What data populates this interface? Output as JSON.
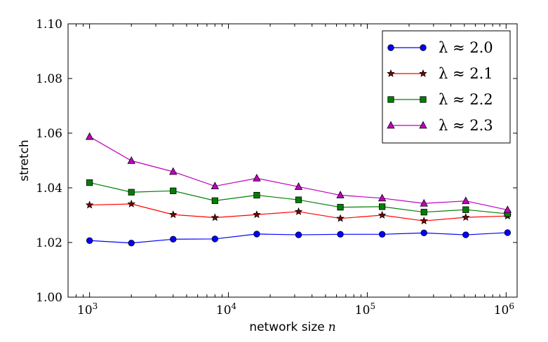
{
  "chart_data": {
    "type": "line",
    "title": "",
    "xlabel": "network size",
    "xlabel_var": "n",
    "ylabel": "stretch",
    "xscale": "log",
    "xlim": [
      700,
      1200000
    ],
    "ylim": [
      1.0,
      1.1
    ],
    "yticks": [
      "1.00",
      "1.02",
      "1.04",
      "1.06",
      "1.08",
      "1.10"
    ],
    "ytick_values": [
      1.0,
      1.02,
      1.04,
      1.06,
      1.08,
      1.1
    ],
    "xticks": [
      {
        "value": 1000,
        "base": "10",
        "exp": "3"
      },
      {
        "value": 10000,
        "base": "10",
        "exp": "4"
      },
      {
        "value": 100000,
        "base": "10",
        "exp": "5"
      },
      {
        "value": 1000000,
        "base": "10",
        "exp": "6"
      }
    ],
    "x": [
      1000,
      2000,
      4000,
      8000,
      16000,
      32000,
      64000,
      128000,
      256000,
      512000,
      1024000
    ],
    "legend_position": "top-right",
    "series": [
      {
        "name": "λ ≈ 2.0",
        "color": "#0000ff",
        "marker": "circle",
        "values": [
          1.0207,
          1.0198,
          1.0212,
          1.0213,
          1.0231,
          1.0228,
          1.023,
          1.023,
          1.0235,
          1.0228,
          1.0236
        ]
      },
      {
        "name": "λ ≈ 2.1",
        "color": "#ff0000",
        "marker": "star",
        "marker_color": "#800000",
        "values": [
          1.0337,
          1.0341,
          1.0302,
          1.0291,
          1.0302,
          1.0313,
          1.0288,
          1.03,
          1.0279,
          1.0292,
          1.0297
        ]
      },
      {
        "name": "λ ≈ 2.2",
        "color": "#008000",
        "marker": "square",
        "values": [
          1.0419,
          1.0384,
          1.0389,
          1.0353,
          1.0373,
          1.0356,
          1.0329,
          1.0331,
          1.0311,
          1.032,
          1.0305
        ]
      },
      {
        "name": "λ ≈ 2.3",
        "color": "#bf00bf",
        "marker": "triangle",
        "values": [
          1.0587,
          1.0499,
          1.0459,
          1.0406,
          1.0435,
          1.0404,
          1.0373,
          1.0362,
          1.0343,
          1.0352,
          1.0319
        ]
      }
    ]
  }
}
